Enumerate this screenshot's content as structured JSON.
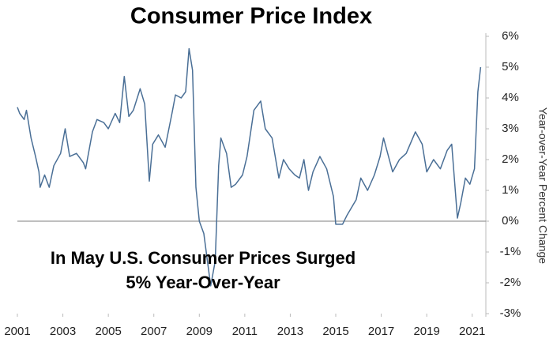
{
  "chart_data": {
    "type": "line",
    "title": "Consumer Price Index",
    "annotation": "In May U.S. Consumer Prices Surged\n5% Year-Over-Year",
    "y_axis_label": "Year-over-Year Percent Change",
    "x": [
      2001.0,
      2001.1,
      2001.3,
      2001.4,
      2001.6,
      2001.8,
      2001.95,
      2002.0,
      2002.2,
      2002.4,
      2002.6,
      2002.9,
      2003.1,
      2003.3,
      2003.6,
      2003.9,
      2004.0,
      2004.3,
      2004.5,
      2004.8,
      2005.0,
      2005.3,
      2005.5,
      2005.7,
      2005.9,
      2006.1,
      2006.4,
      2006.6,
      2006.8,
      2006.95,
      2007.2,
      2007.5,
      2007.8,
      2007.95,
      2008.2,
      2008.4,
      2008.55,
      2008.7,
      2008.85,
      2009.0,
      2009.2,
      2009.5,
      2009.7,
      2009.85,
      2009.95,
      2010.2,
      2010.4,
      2010.6,
      2010.9,
      2011.1,
      2011.4,
      2011.7,
      2011.9,
      2012.2,
      2012.5,
      2012.7,
      2012.95,
      2013.2,
      2013.4,
      2013.6,
      2013.8,
      2014.0,
      2014.3,
      2014.6,
      2014.9,
      2015.0,
      2015.3,
      2015.5,
      2015.9,
      2016.1,
      2016.4,
      2016.7,
      2016.95,
      2017.1,
      2017.5,
      2017.8,
      2018.1,
      2018.5,
      2018.8,
      2019.0,
      2019.3,
      2019.6,
      2019.9,
      2020.1,
      2020.35,
      2020.5,
      2020.7,
      2020.9,
      2021.1,
      2021.25,
      2021.37
    ],
    "series": [
      {
        "name": "CPI",
        "color": "#4a6f96",
        "values": [
          3.7,
          3.5,
          3.3,
          3.6,
          2.7,
          2.1,
          1.6,
          1.1,
          1.5,
          1.1,
          1.8,
          2.2,
          3.0,
          2.1,
          2.2,
          1.9,
          1.7,
          2.9,
          3.3,
          3.2,
          3.0,
          3.5,
          3.2,
          4.7,
          3.4,
          3.6,
          4.3,
          3.8,
          1.3,
          2.5,
          2.8,
          2.4,
          3.5,
          4.1,
          4.0,
          4.2,
          5.6,
          4.9,
          1.1,
          0.0,
          -0.4,
          -2.1,
          -1.3,
          1.8,
          2.7,
          2.2,
          1.1,
          1.2,
          1.5,
          2.1,
          3.6,
          3.9,
          3.0,
          2.7,
          1.4,
          2.0,
          1.7,
          1.5,
          1.4,
          2.0,
          1.0,
          1.6,
          2.1,
          1.7,
          0.8,
          -0.1,
          -0.1,
          0.2,
          0.7,
          1.4,
          1.0,
          1.5,
          2.1,
          2.7,
          1.6,
          2.0,
          2.2,
          2.9,
          2.5,
          1.6,
          2.0,
          1.7,
          2.3,
          2.5,
          0.1,
          0.6,
          1.4,
          1.2,
          1.7,
          4.2,
          5.0
        ]
      }
    ],
    "xlim": [
      2001,
      2021.6
    ],
    "xticks": [
      2001,
      2003,
      2005,
      2007,
      2009,
      2011,
      2013,
      2015,
      2017,
      2019,
      2021
    ],
    "ylim": [
      -3,
      6
    ],
    "yticks": [
      {
        "value": 6,
        "label": "6%"
      },
      {
        "value": 5,
        "label": "5%"
      },
      {
        "value": 4,
        "label": "4%"
      },
      {
        "value": 3,
        "label": "3%"
      },
      {
        "value": 2,
        "label": "2%"
      },
      {
        "value": 1,
        "label": "1%"
      },
      {
        "value": 0,
        "label": "0%"
      },
      {
        "value": -1,
        "label": "-1%"
      },
      {
        "value": -2,
        "label": "-2%"
      },
      {
        "value": -3,
        "label": "-3%"
      }
    ],
    "zero_line": 0
  }
}
